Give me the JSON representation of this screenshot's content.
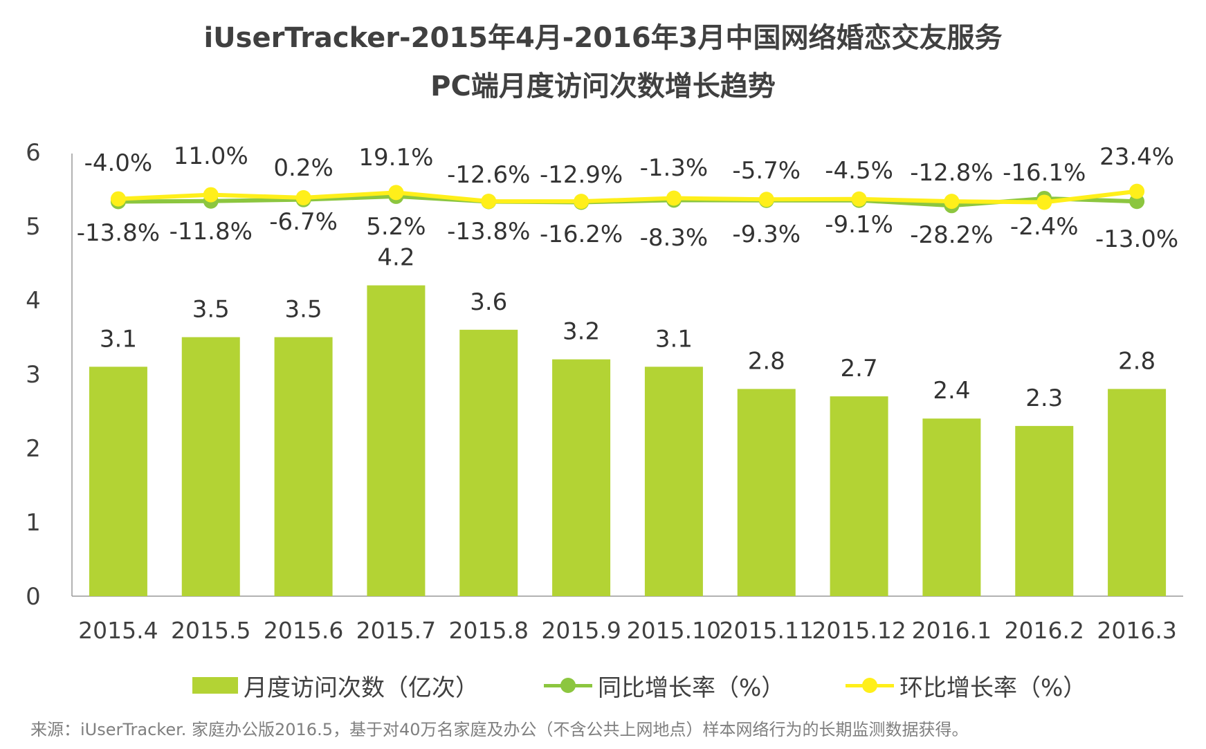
{
  "title_line1": "iUserTracker-2015年4月-2016年3月中国网络婚恋交友服务",
  "title_line2": "PC端月度访问次数增长趋势",
  "source": "来源：iUserTracker. 家庭办公版2016.5，基于对40万名家庭及办公（不含公共上网地点）样本网络行为的长期监测数据获得。",
  "colors": {
    "bar": "#b3d334",
    "yoy": "#8cc63f",
    "mom": "#ffef1a",
    "axis": "#999999"
  },
  "legend": [
    {
      "label": "月度访问次数（亿次）",
      "kind": "bar"
    },
    {
      "label": "同比增长率（%）",
      "kind": "line-yoy"
    },
    {
      "label": "环比增长率（%）",
      "kind": "line-mom"
    }
  ],
  "chart_data": {
    "type": "bar",
    "categories": [
      "2015.4",
      "2015.5",
      "2015.6",
      "2015.7",
      "2015.8",
      "2015.9",
      "2015.10",
      "2015.11",
      "2015.12",
      "2016.1",
      "2016.2",
      "2016.3"
    ],
    "ylim": [
      0,
      6
    ],
    "yticks": [
      0,
      1,
      2,
      3,
      4,
      5,
      6
    ],
    "grid": false,
    "legend_position": "bottom",
    "series": [
      {
        "name": "月度访问次数（亿次）",
        "kind": "bar",
        "values": [
          3.1,
          3.5,
          3.5,
          4.2,
          3.6,
          3.2,
          3.1,
          2.8,
          2.7,
          2.4,
          2.3,
          2.8
        ],
        "labels": [
          "3.1",
          "3.5",
          "3.5",
          "4.2",
          "3.6",
          "3.2",
          "3.1",
          "2.8",
          "2.7",
          "2.4",
          "2.3",
          "2.8"
        ]
      },
      {
        "name": "同比增长率（%）",
        "kind": "line",
        "values": [
          -13.8,
          -11.8,
          -6.7,
          5.2,
          -13.8,
          -16.2,
          -8.3,
          -9.3,
          -9.1,
          -28.2,
          -2.4,
          -13.0
        ],
        "labels": [
          "-13.8%",
          "-11.8%",
          "-6.7%",
          "5.2%",
          "-13.8%",
          "-16.2%",
          "-8.3%",
          "-9.3%",
          "-9.1%",
          "-28.2%",
          "-2.4%",
          "-13.0%"
        ]
      },
      {
        "name": "环比增长率（%）",
        "kind": "line",
        "values": [
          -4.0,
          11.0,
          0.2,
          19.1,
          -12.6,
          -12.9,
          -1.3,
          -5.7,
          -4.5,
          -12.8,
          -16.1,
          23.4
        ],
        "labels": [
          "-4.0%",
          "11.0%",
          "0.2%",
          "19.1%",
          "-12.6%",
          "-12.9%",
          "-1.3%",
          "-5.7%",
          "-4.5%",
          "-12.8%",
          "-16.1%",
          "23.4%"
        ]
      }
    ]
  }
}
